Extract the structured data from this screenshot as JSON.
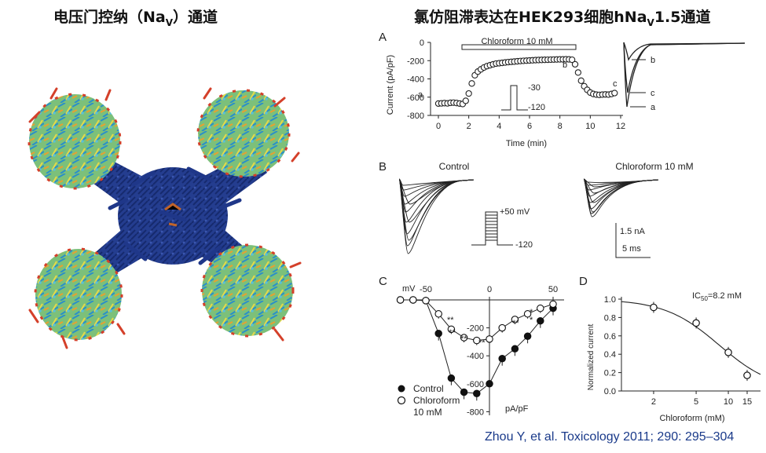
{
  "titles": {
    "left_prefix": "电压门控纳（Na",
    "left_sub": "V",
    "left_suffix": "）通道",
    "right_prefix": "氯仿阻滞表达在HEK293细胞hNa",
    "right_sub": "V",
    "right_suffix": "1.5通道"
  },
  "panel_a": {
    "letter": "A",
    "bar_label": "Chloroform 10 mM",
    "ylabel": "Current (pA/pF)",
    "xlabel": "Time (min)",
    "yticks": [
      "0",
      "-200",
      "-400",
      "-600",
      "-800"
    ],
    "xticks": [
      "0",
      "2",
      "4",
      "6",
      "8",
      "10",
      "12"
    ],
    "point_labels": [
      "a",
      "b",
      "c"
    ],
    "protocol_labels": [
      "-30",
      "-120"
    ],
    "trace_labels": [
      "b",
      "c",
      "a"
    ]
  },
  "panel_b": {
    "letter": "B",
    "control_label": "Control",
    "chloroform_label": "Chloroform 10 mM",
    "protocol_labels": [
      "+50 mV",
      "-120"
    ],
    "scale_current": "1.5 nA",
    "scale_time": "5 ms"
  },
  "panel_c": {
    "letter": "C",
    "x_unit": "mV",
    "xticks": [
      "-50",
      "0",
      "50"
    ],
    "yticks": [
      "-200",
      "-400",
      "-600",
      "-800"
    ],
    "y_unit": "pA/pF",
    "legend_control": "Control",
    "legend_chloroform_1": "Chloroform",
    "legend_chloroform_2": "10 mM",
    "significance_labels": [
      "**",
      "**",
      "**",
      "**",
      "*",
      "**",
      "*"
    ]
  },
  "panel_d": {
    "letter": "D",
    "ic50_prefix": "IC",
    "ic50_sub": "50",
    "ic50_value": "=8.2 mM",
    "ylabel": "Normalized current",
    "xlabel": "Chloroform (mM)",
    "yticks": [
      "1.0",
      "0.8",
      "0.6",
      "0.4",
      "0.2",
      "0.0"
    ],
    "xticks": [
      "2",
      "5",
      "10",
      "15"
    ]
  },
  "citation": "Zhou Y, et al. Toxicology 2011; 290: 295–304",
  "chart_data": [
    {
      "type": "scatter",
      "title": "",
      "xlabel": "Time (min)",
      "ylabel": "Current (pA/pF)",
      "xlim": [
        0,
        12
      ],
      "ylim": [
        -800,
        0
      ],
      "series": [
        {
          "x": [
            0,
            0.2,
            0.4,
            0.6,
            0.8,
            1,
            1.2,
            1.4,
            1.6,
            1.8,
            2,
            2.2,
            2.4,
            2.6,
            2.8,
            3,
            3.2,
            3.4,
            3.6,
            3.8,
            4,
            4.2,
            4.4,
            4.6,
            4.8,
            5,
            5.2,
            5.4,
            5.6,
            5.8,
            6,
            6.2,
            6.4,
            6.6,
            6.8,
            7,
            7.2,
            7.4,
            7.6,
            7.8,
            8,
            8.2,
            8.4,
            8.6,
            8.8,
            9,
            9.2,
            9.4,
            9.6,
            9.8,
            10,
            10.2,
            10.4,
            10.6,
            10.8,
            11,
            11.2,
            11.4,
            11.6
          ],
          "y": [
            -670,
            -668,
            -665,
            -668,
            -662,
            -660,
            -664,
            -670,
            -675,
            -640,
            -560,
            -450,
            -360,
            -320,
            -295,
            -275,
            -260,
            -250,
            -240,
            -232,
            -228,
            -224,
            -220,
            -216,
            -213,
            -210,
            -207,
            -204,
            -202,
            -200,
            -198,
            -196,
            -194,
            -193,
            -192,
            -191,
            -190,
            -189,
            -188,
            -187,
            -186,
            -186,
            -185,
            -186,
            -190,
            -240,
            -330,
            -420,
            -480,
            -520,
            -550,
            -565,
            -572,
            -575,
            -572,
            -570,
            -572,
            -565,
            -555
          ]
        }
      ]
    },
    {
      "type": "line",
      "title": "",
      "xlabel": "mV",
      "ylabel": "pA/pF",
      "xlim": [
        -75,
        55
      ],
      "ylim": [
        -820,
        0
      ],
      "series": [
        {
          "name": "Control",
          "x": [
            -70,
            -60,
            -50,
            -40,
            -30,
            -20,
            -10,
            0,
            10,
            20,
            30,
            40,
            50
          ],
          "y": [
            0,
            0,
            -5,
            -240,
            -560,
            -660,
            -670,
            -600,
            -420,
            -350,
            -260,
            -150,
            -60
          ]
        },
        {
          "name": "Chloroform 10 mM",
          "x": [
            -70,
            -60,
            -50,
            -40,
            -30,
            -20,
            -10,
            0,
            10,
            20,
            30,
            40,
            50
          ],
          "y": [
            0,
            0,
            -5,
            -100,
            -210,
            -270,
            -290,
            -280,
            -200,
            -140,
            -100,
            -60,
            -30
          ]
        }
      ]
    },
    {
      "type": "scatter",
      "title": "",
      "xlabel": "Chloroform (mM)",
      "ylabel": "Normalized current",
      "xscale": "log",
      "xlim": [
        1,
        20
      ],
      "ylim": [
        0,
        1.0
      ],
      "series": [
        {
          "x": [
            2,
            5,
            10,
            15
          ],
          "y": [
            0.91,
            0.74,
            0.42,
            0.17
          ]
        }
      ]
    }
  ]
}
